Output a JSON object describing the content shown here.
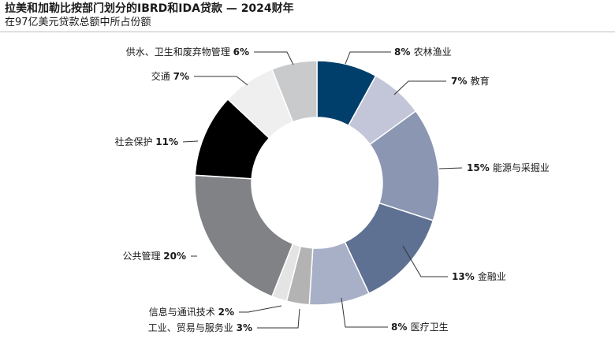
{
  "header": {
    "title": "拉美和加勒比按部门划分的IBRD和IDA贷款 — 2024财年",
    "subtitle": "在97亿美元贷款总额中所占份额"
  },
  "chart_data": {
    "type": "pie",
    "donut": true,
    "unit": "%",
    "slices": [
      {
        "label": "农林渔业",
        "value": 8,
        "color": "#003f6b"
      },
      {
        "label": "教育",
        "value": 7,
        "color": "#c2c6d8"
      },
      {
        "label": "能源与采掘业",
        "value": 15,
        "color": "#8a96b2"
      },
      {
        "label": "金融业",
        "value": 13,
        "color": "#5f7192"
      },
      {
        "label": "医疗卫生",
        "value": 8,
        "color": "#a8b0c8"
      },
      {
        "label": "工业、贸易与服务业",
        "value": 3,
        "color": "#b3b3b3"
      },
      {
        "label": "信息与通讯技术",
        "value": 2,
        "color": "#e4e4e4"
      },
      {
        "label": "公共管理",
        "value": 20,
        "color": "#808285"
      },
      {
        "label": "社会保护",
        "value": 11,
        "color": "#000000"
      },
      {
        "label": "交通",
        "value": 7,
        "color": "#efefef"
      },
      {
        "label": "供水、卫生和废弃物管理",
        "value": 6,
        "color": "#c9cacc"
      }
    ]
  }
}
